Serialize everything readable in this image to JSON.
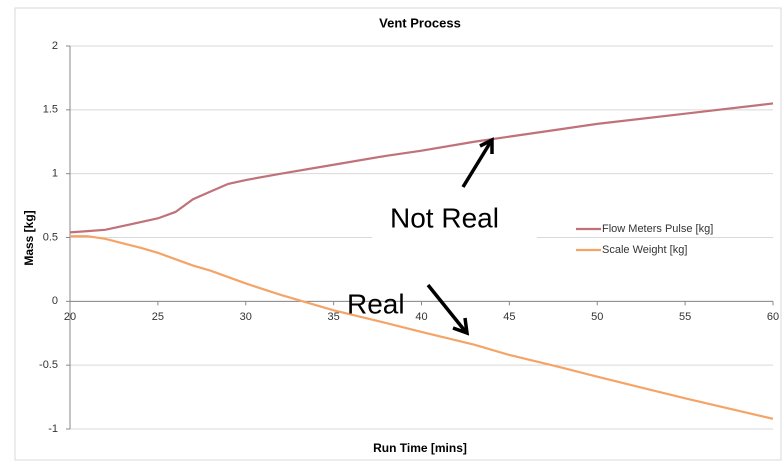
{
  "chart_data": {
    "type": "line",
    "title": "Vent Process",
    "x_label": "Run Time [mins]",
    "y_label": "Mass [kg]",
    "x": [
      20,
      21,
      22,
      24,
      25,
      26,
      27,
      28,
      29,
      30,
      32,
      35,
      38,
      40,
      43,
      45,
      48,
      50,
      55,
      60
    ],
    "series": [
      {
        "name": "Flow Meters Pulse [kg]",
        "color": "#c0727a",
        "values": [
          0.54,
          0.55,
          0.56,
          0.62,
          0.65,
          0.7,
          0.8,
          0.86,
          0.92,
          0.95,
          1.0,
          1.07,
          1.14,
          1.18,
          1.25,
          1.29,
          1.35,
          1.39,
          1.47,
          1.55
        ]
      },
      {
        "name": "Scale Weight [kg]",
        "color": "#f5a468",
        "values": [
          0.51,
          0.51,
          0.49,
          0.42,
          0.38,
          0.33,
          0.28,
          0.24,
          0.19,
          0.14,
          0.05,
          -0.07,
          -0.17,
          -0.24,
          -0.34,
          -0.42,
          -0.52,
          -0.59,
          -0.76,
          -0.92
        ]
      }
    ],
    "xlim": [
      20,
      60
    ],
    "xticks": [
      20,
      25,
      30,
      35,
      40,
      45,
      50,
      55,
      60
    ],
    "ylim": [
      -1,
      2
    ],
    "yticks": [
      -1,
      -0.5,
      0,
      0.5,
      1,
      1.5,
      2
    ],
    "grid": true,
    "legend": "right",
    "annotations": [
      "Not Real",
      "Real"
    ]
  }
}
